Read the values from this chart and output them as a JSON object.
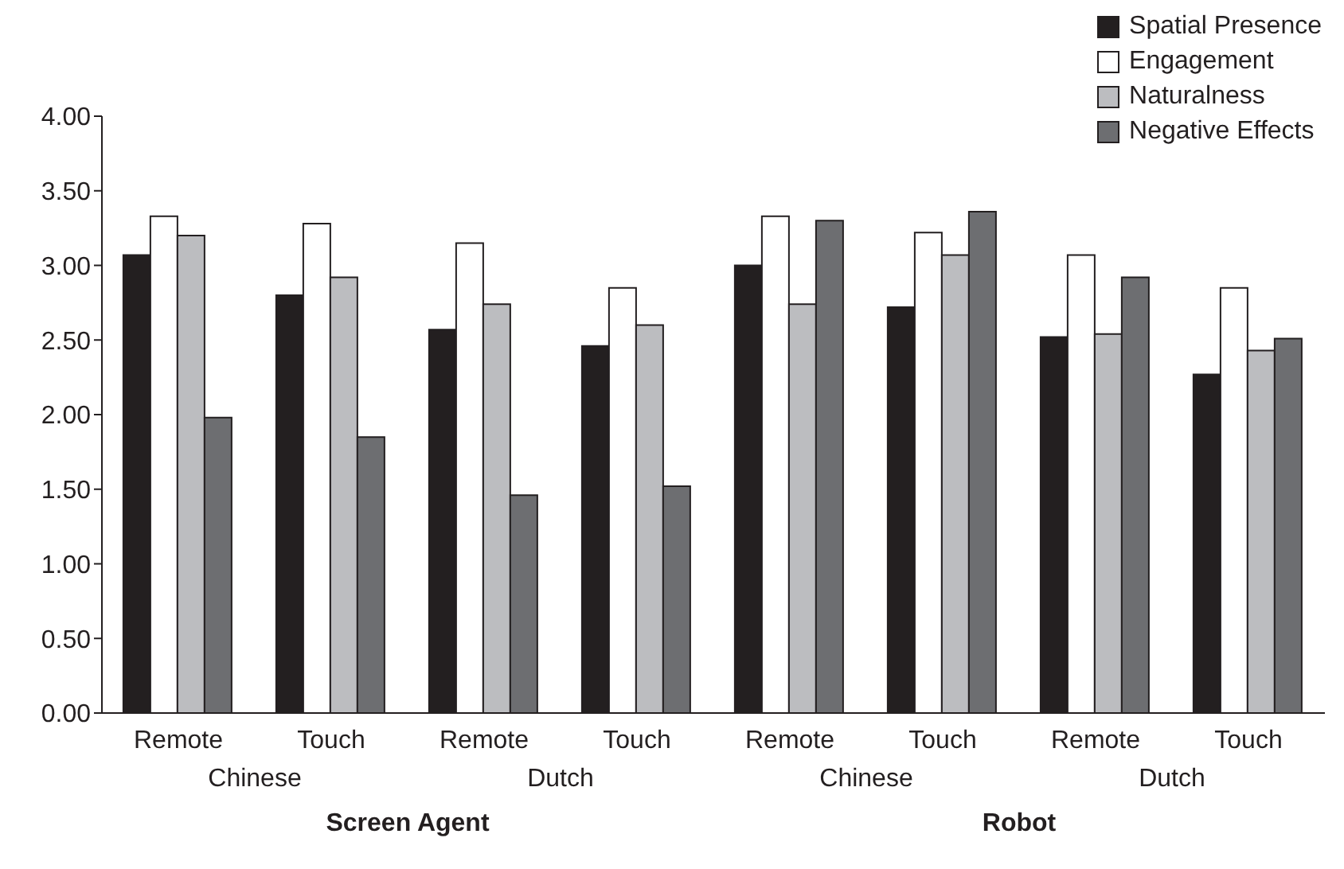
{
  "chart_data": {
    "type": "bar",
    "categories": [
      "Remote",
      "Touch",
      "Remote",
      "Touch",
      "Remote",
      "Touch",
      "Remote",
      "Touch"
    ],
    "series": [
      {
        "name": "Spatial Presence",
        "color": "#231f20",
        "values": [
          3.07,
          2.8,
          2.57,
          2.46,
          3.0,
          2.72,
          2.52,
          2.27
        ]
      },
      {
        "name": "Engagement",
        "color": "#ffffff",
        "values": [
          3.33,
          3.28,
          3.15,
          2.85,
          3.33,
          3.22,
          3.07,
          2.85
        ]
      },
      {
        "name": "Naturalness",
        "color": "#bcbdc0",
        "values": [
          3.2,
          2.92,
          2.74,
          2.6,
          2.74,
          3.07,
          2.54,
          2.43
        ]
      },
      {
        "name": "Negative Effects",
        "color": "#6d6e71",
        "values": [
          1.98,
          1.85,
          1.46,
          1.52,
          3.3,
          3.36,
          2.92,
          2.51
        ]
      }
    ],
    "ylim": [
      0,
      4
    ],
    "yticks": [
      {
        "value": 0,
        "label": "0.00"
      },
      {
        "value": 0.5,
        "label": "0.50"
      },
      {
        "value": 1,
        "label": "1.00"
      },
      {
        "value": 1.5,
        "label": "1.50"
      },
      {
        "value": 2,
        "label": "2.00"
      },
      {
        "value": 2.5,
        "label": "2.50"
      },
      {
        "value": 3,
        "label": "3.00"
      },
      {
        "value": 3.5,
        "label": "3.50"
      },
      {
        "value": 4,
        "label": "4.00"
      }
    ],
    "annotations": [
      "Chinese",
      "Dutch",
      "Chinese",
      "Dutch",
      "Screen Agent",
      "Robot"
    ],
    "grid": false,
    "legend": "top right"
  }
}
